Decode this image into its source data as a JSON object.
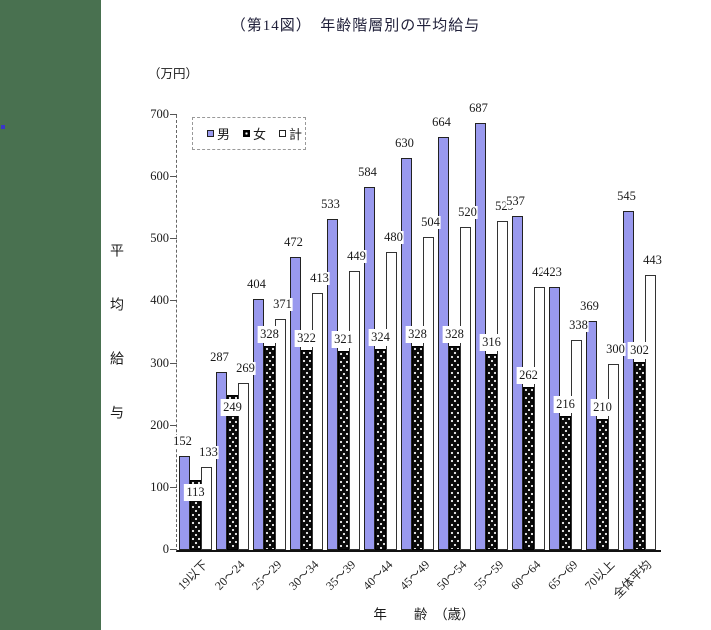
{
  "page": {
    "title": "（第14図）　年齢階層別の平均給与",
    "unit_label": "（万円）",
    "y_axis_title": "平均給与",
    "x_axis_title": "年　　齢　（歳）"
  },
  "legend": [
    {
      "label": "男"
    },
    {
      "label": "女"
    },
    {
      "label": "計"
    }
  ],
  "colors": {
    "male_bar": "#9999ee",
    "female_bar": "#0a0a0a",
    "total_bar": "#ffffff",
    "sidebar_green": "#497150",
    "sidebar_marker_blue": "#3b35c9",
    "text": "#1a1a1a"
  },
  "chart_data": {
    "type": "bar",
    "title": "（第14図）年齢階層別の平均給与",
    "categories": [
      "19以下",
      "20〜24",
      "25〜29",
      "30〜34",
      "35〜39",
      "40〜44",
      "45〜49",
      "50〜54",
      "55〜59",
      "60〜64",
      "65〜69",
      "70以上",
      "全体平均"
    ],
    "series": [
      {
        "name": "男",
        "color": "#9999ee",
        "values": [
          152,
          287,
          404,
          472,
          533,
          584,
          630,
          664,
          687,
          537,
          423,
          369,
          545
        ]
      },
      {
        "name": "女",
        "color": "#0a0a0a",
        "values": [
          113,
          249,
          328,
          322,
          321,
          324,
          328,
          328,
          316,
          262,
          216,
          210,
          302
        ]
      },
      {
        "name": "計",
        "color": "#ffffff",
        "values": [
          133,
          269,
          371,
          413,
          449,
          480,
          504,
          520,
          529,
          423,
          338,
          300,
          443
        ]
      }
    ],
    "xlabel": "年齢（歳）",
    "ylabel": "平均給与（万円）",
    "ylim": [
      0,
      700
    ],
    "yticks": [
      0,
      100,
      200,
      300,
      400,
      500,
      600,
      700
    ],
    "grid": false,
    "legend_position": "top-left",
    "data_labels": true
  }
}
